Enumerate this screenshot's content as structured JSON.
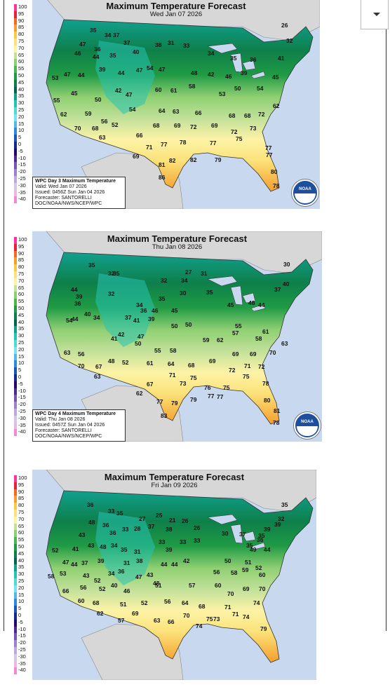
{
  "panels": [
    {
      "title": "Maximum Temperature Forecast",
      "date": "Wed Jan 07 2026",
      "info": {
        "product": "WPC Day 3 Maximum Temperature",
        "valid": "Valid: Wed Jan 07 2026",
        "issued": "Issued: 0456Z Sun Jan 04 2026",
        "forecaster": "Forecaster: SANTORELLI",
        "org": "DOC/NOAA/NWS/NCEP/WPC"
      },
      "temps": [
        [
          "35",
          82,
          40
        ],
        [
          "34",
          103,
          47
        ],
        [
          "37",
          115,
          47
        ],
        [
          "26",
          355,
          33
        ],
        [
          "32",
          362,
          55
        ],
        [
          "46",
          60,
          73
        ],
        [
          "47",
          67,
          60
        ],
        [
          "36",
          88,
          67
        ],
        [
          "44",
          86,
          78
        ],
        [
          "35",
          110,
          76
        ],
        [
          "37",
          130,
          58
        ],
        [
          "40",
          143,
          71
        ],
        [
          "38",
          175,
          61
        ],
        [
          "31",
          193,
          58
        ],
        [
          "33",
          215,
          62
        ],
        [
          "34",
          250,
          73
        ],
        [
          "35",
          282,
          80
        ],
        [
          "36",
          310,
          82
        ],
        [
          "41",
          350,
          80
        ],
        [
          "53",
          28,
          108
        ],
        [
          "47",
          45,
          103
        ],
        [
          "44",
          65,
          104
        ],
        [
          "39",
          95,
          96
        ],
        [
          "44",
          122,
          101
        ],
        [
          "47",
          148,
          97
        ],
        [
          "54",
          163,
          94
        ],
        [
          "47",
          180,
          96
        ],
        [
          "48",
          226,
          101
        ],
        [
          "42",
          250,
          103
        ],
        [
          "46",
          275,
          106
        ],
        [
          "39",
          297,
          101
        ],
        [
          "45",
          342,
          107
        ],
        [
          "55",
          30,
          140
        ],
        [
          "45",
          55,
          130
        ],
        [
          "50",
          89,
          139
        ],
        [
          "42",
          118,
          126
        ],
        [
          "47",
          133,
          132
        ],
        [
          "60",
          175,
          125
        ],
        [
          "61",
          197,
          126
        ],
        [
          "58",
          223,
          120
        ],
        [
          "53",
          266,
          131
        ],
        [
          "50",
          288,
          123
        ],
        [
          "54",
          320,
          123
        ],
        [
          "62",
          343,
          148
        ],
        [
          "62",
          40,
          160
        ],
        [
          "59",
          75,
          159
        ],
        [
          "56",
          98,
          170
        ],
        [
          "54",
          138,
          153
        ],
        [
          "64",
          180,
          155
        ],
        [
          "63",
          200,
          156
        ],
        [
          "66",
          232,
          158
        ],
        [
          "68",
          280,
          162
        ],
        [
          "68",
          302,
          162
        ],
        [
          "72",
          322,
          160
        ],
        [
          "70",
          60,
          180
        ],
        [
          "68",
          85,
          180
        ],
        [
          "52",
          113,
          175
        ],
        [
          "68",
          172,
          176
        ],
        [
          "69",
          202,
          176
        ],
        [
          "72",
          225,
          178
        ],
        [
          "69",
          255,
          176
        ],
        [
          "72",
          283,
          185
        ],
        [
          "73",
          310,
          180
        ],
        [
          "63",
          95,
          193
        ],
        [
          "66",
          148,
          190
        ],
        [
          "75",
          290,
          195
        ],
        [
          "69",
          143,
          220
        ],
        [
          "71",
          162,
          207
        ],
        [
          "77",
          183,
          203
        ],
        [
          "78",
          210,
          200
        ],
        [
          "77",
          253,
          201
        ],
        [
          "77",
          332,
          208
        ],
        [
          "82",
          195,
          226
        ],
        [
          "82",
          225,
          225
        ],
        [
          "81",
          180,
          232
        ],
        [
          "79",
          260,
          225
        ],
        [
          "77",
          333,
          218
        ],
        [
          "80",
          340,
          242
        ],
        [
          "86",
          180,
          250
        ],
        [
          "78",
          343,
          262
        ]
      ]
    },
    {
      "title": "Maximum Temperature Forecast",
      "date": "Thu Jan 08 2026",
      "info": {
        "product": "WPC Day 4 Maximum Temperature",
        "valid": "Valid: Thu Jan 08 2026",
        "issued": "Issued: 0457Z Sun Jan 04 2026",
        "forecaster": "Forecaster: SANTORELLI",
        "org": "DOC/NOAA/NWS/NCEP/WPC"
      },
      "temps": [
        [
          "35",
          80,
          43
        ],
        [
          "32",
          108,
          55
        ],
        [
          "35",
          115,
          55
        ],
        [
          "30",
          358,
          42
        ],
        [
          "32",
          183,
          65
        ],
        [
          "34",
          212,
          65
        ],
        [
          "27",
          218,
          53
        ],
        [
          "31",
          240,
          55
        ],
        [
          "40",
          357,
          70
        ],
        [
          "37",
          345,
          78
        ],
        [
          "44",
          55,
          78
        ],
        [
          "36",
          60,
          98
        ],
        [
          "39",
          62,
          88
        ],
        [
          "32",
          108,
          84
        ],
        [
          "35",
          180,
          91
        ],
        [
          "34",
          148,
          100
        ],
        [
          "36",
          154,
          108
        ],
        [
          "30",
          210,
          83
        ],
        [
          "35",
          248,
          82
        ],
        [
          "45",
          278,
          100
        ],
        [
          "44",
          322,
          100
        ],
        [
          "48",
          308,
          97
        ],
        [
          "54",
          48,
          122
        ],
        [
          "44",
          56,
          120
        ],
        [
          "40",
          74,
          113
        ],
        [
          "34",
          87,
          118
        ],
        [
          "37",
          132,
          118
        ],
        [
          "46",
          170,
          108
        ],
        [
          "45",
          198,
          108
        ],
        [
          "41",
          144,
          122
        ],
        [
          "39",
          165,
          120
        ],
        [
          "50",
          198,
          130
        ],
        [
          "50",
          218,
          128
        ],
        [
          "59",
          243,
          150
        ],
        [
          "62",
          263,
          150
        ],
        [
          "57",
          285,
          140
        ],
        [
          "55",
          289,
          130
        ],
        [
          "58",
          318,
          148
        ],
        [
          "61",
          328,
          138
        ],
        [
          "63",
          45,
          168
        ],
        [
          "56",
          65,
          170
        ],
        [
          "41",
          112,
          148
        ],
        [
          "42",
          122,
          142
        ],
        [
          "50",
          146,
          155
        ],
        [
          "47",
          150,
          145
        ],
        [
          "55",
          174,
          165
        ],
        [
          "58",
          196,
          165
        ],
        [
          "69",
          285,
          170
        ],
        [
          "69",
          310,
          170
        ],
        [
          "70",
          338,
          168
        ],
        [
          "63",
          355,
          155
        ],
        [
          "70",
          65,
          187
        ],
        [
          "67",
          90,
          188
        ],
        [
          "48",
          108,
          180
        ],
        [
          "52",
          128,
          182
        ],
        [
          "61",
          163,
          183
        ],
        [
          "64",
          193,
          184
        ],
        [
          "68",
          222,
          186
        ],
        [
          "69",
          252,
          180
        ],
        [
          "72",
          280,
          193
        ],
        [
          "71",
          302,
          187
        ],
        [
          "72",
          322,
          188
        ],
        [
          "63",
          88,
          202
        ],
        [
          "75",
          300,
          202
        ],
        [
          "78",
          328,
          212
        ],
        [
          "67",
          163,
          213
        ],
        [
          "71",
          195,
          200
        ],
        [
          "73",
          210,
          212
        ],
        [
          "75",
          225,
          204
        ],
        [
          "76",
          245,
          218
        ],
        [
          "77",
          250,
          230
        ],
        [
          "75",
          272,
          218
        ],
        [
          "62",
          148,
          226
        ],
        [
          "77",
          177,
          238
        ],
        [
          "79",
          198,
          240
        ],
        [
          "79",
          225,
          235
        ],
        [
          "77",
          263,
          231
        ],
        [
          "80",
          330,
          236
        ],
        [
          "81",
          344,
          251
        ],
        [
          "83",
          183,
          258
        ],
        [
          "78",
          343,
          268
        ]
      ]
    },
    {
      "title": "Maximum Temperature Forecast",
      "date": "Fri Jan 09 2026",
      "info": {
        "product": "",
        "valid": "",
        "issued": "",
        "forecaster": "",
        "org": ""
      },
      "temps": [
        [
          "36",
          78,
          45
        ],
        [
          "33",
          108,
          54
        ],
        [
          "35",
          120,
          57
        ],
        [
          "27",
          152,
          65
        ],
        [
          "25",
          176,
          60
        ],
        [
          "21",
          195,
          67
        ],
        [
          "26",
          213,
          68
        ],
        [
          "35",
          355,
          45
        ],
        [
          "26",
          230,
          78
        ],
        [
          "43",
          66,
          88
        ],
        [
          "48",
          80,
          70
        ],
        [
          "36",
          100,
          74
        ],
        [
          "36",
          110,
          85
        ],
        [
          "33",
          128,
          80
        ],
        [
          "28",
          145,
          79
        ],
        [
          "37",
          165,
          76
        ],
        [
          "38",
          190,
          80
        ],
        [
          "30",
          270,
          86
        ],
        [
          "32",
          350,
          65
        ],
        [
          "39",
          345,
          73
        ],
        [
          "39",
          330,
          80
        ],
        [
          "37",
          295,
          87
        ],
        [
          "35",
          322,
          89
        ],
        [
          "33",
          210,
          98
        ],
        [
          "33",
          230,
          96
        ],
        [
          "33",
          180,
          98
        ],
        [
          "39",
          190,
          109
        ],
        [
          "35",
          305,
          103
        ],
        [
          "36",
          320,
          95
        ],
        [
          "52",
          28,
          110
        ],
        [
          "41",
          57,
          108
        ],
        [
          "43",
          79,
          103
        ],
        [
          "48",
          96,
          105
        ],
        [
          "34",
          112,
          103
        ],
        [
          "35",
          126,
          109
        ],
        [
          "31",
          145,
          112
        ],
        [
          "49",
          310,
          109
        ],
        [
          "44",
          330,
          109
        ],
        [
          "44",
          55,
          130
        ],
        [
          "47",
          43,
          127
        ],
        [
          "37",
          70,
          128
        ],
        [
          "39",
          93,
          125
        ],
        [
          "31",
          130,
          128
        ],
        [
          "38",
          148,
          125
        ],
        [
          "44",
          183,
          130
        ],
        [
          "44",
          198,
          130
        ],
        [
          "42",
          215,
          125
        ],
        [
          "50",
          274,
          125
        ],
        [
          "51",
          303,
          127
        ],
        [
          "52",
          318,
          135
        ],
        [
          "58",
          22,
          147
        ],
        [
          "53",
          39,
          143
        ],
        [
          "43",
          72,
          146
        ],
        [
          "52",
          88,
          153
        ],
        [
          "34",
          108,
          143
        ],
        [
          "36",
          122,
          140
        ],
        [
          "47",
          147,
          148
        ],
        [
          "43",
          163,
          145
        ],
        [
          "51",
          175,
          160
        ],
        [
          "56",
          258,
          141
        ],
        [
          "58",
          283,
          142
        ],
        [
          "59",
          299,
          138
        ],
        [
          "60",
          323,
          145
        ],
        [
          "66",
          43,
          168
        ],
        [
          "56",
          68,
          163
        ],
        [
          "52",
          95,
          165
        ],
        [
          "40",
          112,
          160
        ],
        [
          "46",
          130,
          168
        ],
        [
          "48",
          172,
          157
        ],
        [
          "57",
          223,
          160
        ],
        [
          "60",
          260,
          160
        ],
        [
          "70",
          278,
          172
        ],
        [
          "69",
          300,
          165
        ],
        [
          "70",
          323,
          165
        ],
        [
          "60",
          65,
          182
        ],
        [
          "68",
          86,
          185
        ],
        [
          "51",
          125,
          187
        ],
        [
          "52",
          155,
          185
        ],
        [
          "56",
          188,
          183
        ],
        [
          "64",
          213,
          185
        ],
        [
          "68",
          237,
          190
        ],
        [
          "71",
          274,
          191
        ],
        [
          "74",
          315,
          185
        ],
        [
          "62",
          92,
          200
        ],
        [
          "69",
          142,
          200
        ],
        [
          "74",
          233,
          218
        ],
        [
          "73",
          258,
          208
        ],
        [
          "71",
          285,
          201
        ],
        [
          "74",
          300,
          205
        ],
        [
          "57",
          122,
          210
        ],
        [
          "63",
          173,
          210
        ],
        [
          "66",
          193,
          212
        ],
        [
          "70",
          215,
          203
        ],
        [
          "75",
          248,
          208
        ],
        [
          "79",
          325,
          222
        ]
      ]
    }
  ],
  "legend": [
    [
      "100",
      "#ff3399"
    ],
    [
      "95",
      "#e8203c"
    ],
    [
      "90",
      "#f26a22"
    ],
    [
      "85",
      "#f59e2b"
    ],
    [
      "80",
      "#f7c94a"
    ],
    [
      "75",
      "#fbe27a"
    ],
    [
      "70",
      "#fdf3a6"
    ],
    [
      "65",
      "#c3e19a"
    ],
    [
      "60",
      "#8fcf72"
    ],
    [
      "55",
      "#4fb64f"
    ],
    [
      "50",
      "#1f9a45"
    ],
    [
      "45",
      "#0e7f4a"
    ],
    [
      "40",
      "#06644a"
    ],
    [
      "35",
      "#10a08f"
    ],
    [
      "30",
      "#27c3b4"
    ],
    [
      "25",
      "#53d8d8"
    ],
    [
      "20",
      "#7ce2f0"
    ],
    [
      "15",
      "#55b8ec"
    ],
    [
      "10",
      "#2f8ade"
    ],
    [
      "5",
      "#1b55b8"
    ],
    [
      "0",
      "#0f2b8c"
    ],
    [
      "-5",
      "#220a6b"
    ],
    [
      "-10",
      "#4b2a90"
    ],
    [
      "-15",
      "#7355b0"
    ],
    [
      "-20",
      "#9a82c9"
    ],
    [
      "-25",
      "#baa9db"
    ],
    [
      "-30",
      "#d3c7e6"
    ],
    [
      "-35",
      "#e6b8e6"
    ],
    [
      "-40",
      "#f08ad8"
    ]
  ],
  "colors": {
    "ocean": "#c8d9ef",
    "land_outside": "#d7d7d7"
  }
}
